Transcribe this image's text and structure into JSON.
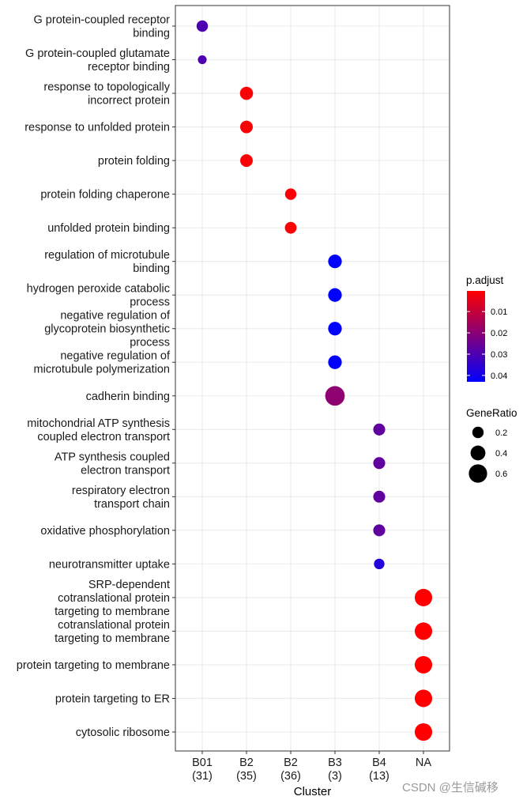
{
  "chart_data": {
    "type": "scatter",
    "xlabel": "Cluster",
    "ylabel": "",
    "categories": [
      "B01\n(31)",
      "B2\n(35)",
      "B2\n(36)",
      "B3\n(3)",
      "B4\n(13)",
      "NA"
    ],
    "rows": [
      "G protein-coupled receptor\nbinding",
      "G protein-coupled glutamate\nreceptor binding",
      "response to topologically\nincorrect protein",
      "response to unfolded protein",
      "protein folding",
      "protein folding chaperone",
      "unfolded protein binding",
      "regulation of microtubule\nbinding",
      "hydrogen peroxide catabolic\nprocess",
      "negative regulation of\nglycoprotein biosynthetic\nprocess",
      "negative regulation of\nmicrotubule polymerization",
      "cadherin binding",
      "mitochondrial ATP synthesis\ncoupled electron transport",
      "ATP synthesis coupled\nelectron transport",
      "respiratory electron\ntransport chain",
      "oxidative phosphorylation",
      "neurotransmitter uptake",
      "SRP-dependent\ncotranslational protein\ntargeting to membrane",
      "cotranslational protein\ntargeting to membrane",
      "protein targeting to membrane",
      "protein targeting to ER",
      "cytosolic ribosome"
    ],
    "points": [
      {
        "row": 0,
        "cluster": 0,
        "gene_ratio": 0.2,
        "p_adjust": 0.03
      },
      {
        "row": 1,
        "cluster": 0,
        "gene_ratio": 0.05,
        "p_adjust": 0.03
      },
      {
        "row": 2,
        "cluster": 1,
        "gene_ratio": 0.3,
        "p_adjust": 0.001
      },
      {
        "row": 3,
        "cluster": 1,
        "gene_ratio": 0.27,
        "p_adjust": 0.001
      },
      {
        "row": 4,
        "cluster": 1,
        "gene_ratio": 0.27,
        "p_adjust": 0.001
      },
      {
        "row": 5,
        "cluster": 2,
        "gene_ratio": 0.2,
        "p_adjust": 0.001
      },
      {
        "row": 6,
        "cluster": 2,
        "gene_ratio": 0.22,
        "p_adjust": 0.001
      },
      {
        "row": 7,
        "cluster": 3,
        "gene_ratio": 0.33,
        "p_adjust": 0.043
      },
      {
        "row": 8,
        "cluster": 3,
        "gene_ratio": 0.33,
        "p_adjust": 0.043
      },
      {
        "row": 9,
        "cluster": 3,
        "gene_ratio": 0.33,
        "p_adjust": 0.043
      },
      {
        "row": 10,
        "cluster": 3,
        "gene_ratio": 0.33,
        "p_adjust": 0.043
      },
      {
        "row": 11,
        "cluster": 3,
        "gene_ratio": 0.67,
        "p_adjust": 0.019
      },
      {
        "row": 12,
        "cluster": 4,
        "gene_ratio": 0.23,
        "p_adjust": 0.027
      },
      {
        "row": 13,
        "cluster": 4,
        "gene_ratio": 0.23,
        "p_adjust": 0.027
      },
      {
        "row": 14,
        "cluster": 4,
        "gene_ratio": 0.23,
        "p_adjust": 0.027
      },
      {
        "row": 15,
        "cluster": 4,
        "gene_ratio": 0.23,
        "p_adjust": 0.027
      },
      {
        "row": 16,
        "cluster": 4,
        "gene_ratio": 0.15,
        "p_adjust": 0.037
      },
      {
        "row": 17,
        "cluster": 5,
        "gene_ratio": 0.55,
        "p_adjust": 0.0005
      },
      {
        "row": 18,
        "cluster": 5,
        "gene_ratio": 0.55,
        "p_adjust": 0.0005
      },
      {
        "row": 19,
        "cluster": 5,
        "gene_ratio": 0.55,
        "p_adjust": 0.0005
      },
      {
        "row": 20,
        "cluster": 5,
        "gene_ratio": 0.55,
        "p_adjust": 0.0005
      },
      {
        "row": 21,
        "cluster": 5,
        "gene_ratio": 0.55,
        "p_adjust": 0.0005
      }
    ],
    "color_legend": {
      "title": "p.adjust",
      "ticks": [
        "0.01",
        "0.02",
        "0.03",
        "0.04"
      ],
      "range": [
        0.0003,
        0.043
      ],
      "low_color": "#ff0000",
      "high_color": "#0000ff"
    },
    "size_legend": {
      "title": "GeneRatio",
      "ticks": [
        "0.2",
        "0.4",
        "0.6"
      ]
    },
    "grid": true,
    "legend_placement": "right"
  },
  "watermark": "CSDN @生信碱移"
}
